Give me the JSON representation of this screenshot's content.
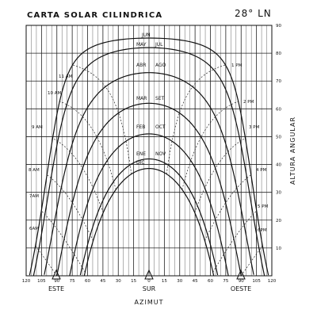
{
  "title": "CARTA SOLAR CILINDRICA",
  "latitude": "28° LN",
  "right_axis_label": "ALTURA ANGULAR",
  "bottom_axis_label": "AZIMUT",
  "x_tick_labels": [
    "120",
    "105",
    "90",
    "75",
    "60",
    "45",
    "30",
    "15",
    "0",
    "15",
    "30",
    "45",
    "60",
    "75",
    "90",
    "105",
    "120"
  ],
  "y_tick_labels": [
    "10",
    "20",
    "30",
    "40",
    "50",
    "60",
    "70",
    "80",
    "90"
  ],
  "direction_labels": {
    "east": "ESTE",
    "south": "SUR",
    "west": "OESTE"
  },
  "month_labels": {
    "jun": "JUN",
    "may": "MAY",
    "jul": "JUL",
    "abr": "ABR",
    "ago": "AGO",
    "mar": "MAR",
    "set": "SET",
    "feb": "FEB",
    "oct": "OCT",
    "ene": "ENE",
    "nov": "NOV",
    "dic": "DIC"
  },
  "hour_labels": {
    "am11": "11 AM",
    "am10": "10 AM",
    "am9": "9 AM",
    "am8": "8 AM",
    "am7": "7AM",
    "am6": "6AM",
    "pm1": "1 PM",
    "pm2": "2 PM",
    "pm3": "3 PM",
    "pm4": "4 PM",
    "pm5": "5 PM",
    "pm6": "6PM"
  },
  "chart_data": {
    "type": "line",
    "title": "CARTA SOLAR CILINDRICA",
    "subtitle": "28° LN",
    "xlabel": "AZIMUT",
    "ylabel": "ALTURA ANGULAR",
    "xlim": [
      -120,
      120
    ],
    "ylim": [
      0,
      90
    ],
    "grid": true,
    "series": [
      {
        "name": "JUN",
        "declination": 23.44
      },
      {
        "name": "MAY / JUL",
        "declination": 20.0
      },
      {
        "name": "ABR / AGO",
        "declination": 11.0
      },
      {
        "name": "MAR / SET",
        "declination": 0.0
      },
      {
        "name": "FEB / OCT",
        "declination": -11.0
      },
      {
        "name": "ENE / NOV",
        "declination": -20.0
      },
      {
        "name": "DIC",
        "declination": -23.44
      }
    ],
    "hour_lines": [
      "6AM",
      "7AM",
      "8 AM",
      "9 AM",
      "10 AM",
      "11 AM",
      "1 PM",
      "2 PM",
      "3 PM",
      "4 PM",
      "5 PM",
      "6PM"
    ]
  }
}
